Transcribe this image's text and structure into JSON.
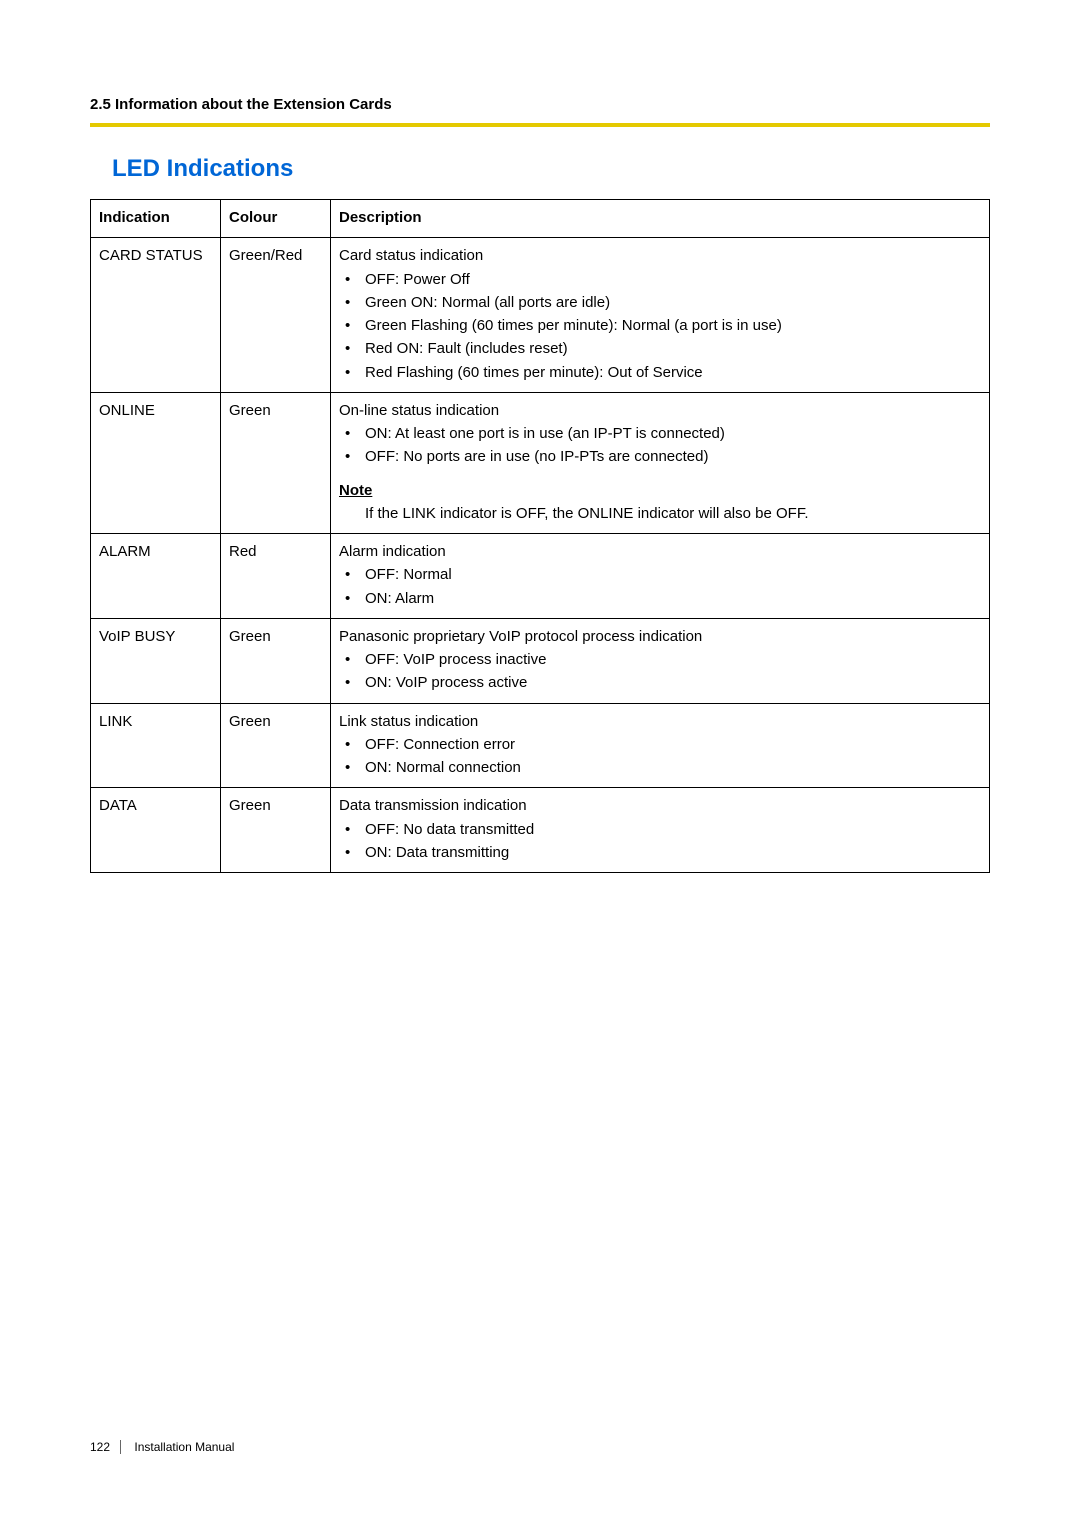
{
  "header": {
    "section": "2.5 Information about the Extension Cards"
  },
  "title": "LED Indications",
  "columns": {
    "indication": "Indication",
    "colour": "Colour",
    "description": "Description"
  },
  "rows": {
    "r0": {
      "indication": "CARD STATUS",
      "colour": "Green/Red",
      "intro": "Card status indication",
      "b0": "OFF: Power Off",
      "b1": "Green ON: Normal (all ports are idle)",
      "b2": "Green Flashing (60 times per minute): Normal (a port is in use)",
      "b3": "Red ON: Fault (includes reset)",
      "b4": "Red Flashing (60 times per minute): Out of Service"
    },
    "r1": {
      "indication": "ONLINE",
      "colour": "Green",
      "intro": "On-line status indication",
      "b0": "ON: At least one port is in use (an IP-PT is connected)",
      "b1": "OFF: No ports are in use (no IP-PTs are connected)",
      "note_label": "Note",
      "note_text": "If the LINK indicator is OFF, the ONLINE indicator will also be OFF."
    },
    "r2": {
      "indication": "ALARM",
      "colour": "Red",
      "intro": "Alarm indication",
      "b0": "OFF: Normal",
      "b1": "ON: Alarm"
    },
    "r3": {
      "indication": "VoIP BUSY",
      "colour": "Green",
      "intro": "Panasonic proprietary VoIP protocol process indication",
      "b0": "OFF: VoIP process inactive",
      "b1": "ON: VoIP process active"
    },
    "r4": {
      "indication": "LINK",
      "colour": "Green",
      "intro": "Link status indication",
      "b0": "OFF: Connection error",
      "b1": "ON: Normal connection"
    },
    "r5": {
      "indication": "DATA",
      "colour": "Green",
      "intro": "Data transmission indication",
      "b0": "OFF: No data transmitted",
      "b1": "ON: Data transmitting"
    }
  },
  "footer": {
    "page_number": "122",
    "doc": "Installation Manual"
  },
  "colors": {
    "accent": "#e4c900",
    "title": "#0066d6",
    "text": "#000000",
    "border": "#000000",
    "background": "#ffffff"
  }
}
